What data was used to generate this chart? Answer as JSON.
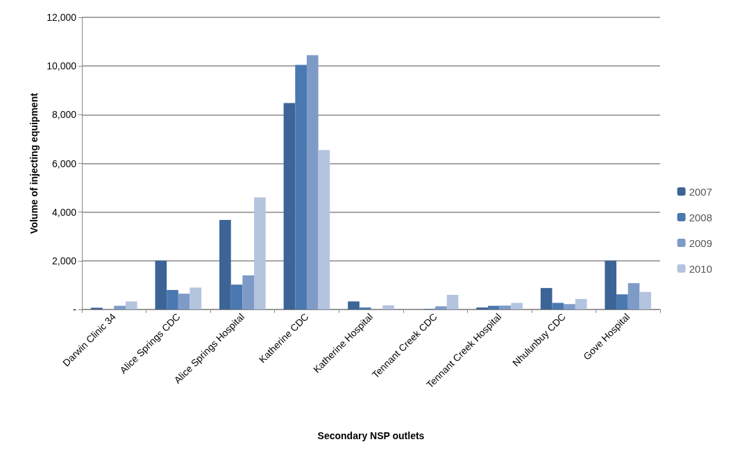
{
  "chart_data": {
    "type": "bar",
    "xlabel": "Secondary NSP outlets",
    "ylabel": "Volume of injecting equipment",
    "categories": [
      "Darwin Clinic 34",
      "Alice Springs CDC",
      "Alice Springs Hospital",
      "Katherine CDC",
      "Katherine Hospital",
      "Tennant Creek CDC",
      "Tennant Creek Hospital",
      "Nhulunbuy CDC",
      "Gove Hospital"
    ],
    "series": [
      {
        "name": "2007",
        "color": "#3c6496",
        "values": [
          70,
          2000,
          3680,
          8480,
          330,
          null,
          80,
          880,
          2000
        ]
      },
      {
        "name": "2008",
        "color": "#4a78b0",
        "values": [
          0,
          800,
          1020,
          10050,
          80,
          20,
          150,
          270,
          620
        ]
      },
      {
        "name": "2009",
        "color": "#7e9bc8",
        "values": [
          150,
          650,
          1400,
          10450,
          0,
          130,
          160,
          220,
          1080
        ]
      },
      {
        "name": "2010",
        "color": "#b4c4df",
        "values": [
          330,
          900,
          4600,
          6550,
          170,
          600,
          270,
          430,
          720
        ]
      }
    ],
    "ylim": [
      0,
      12000
    ],
    "yticks": [
      {
        "value": 0,
        "label": "-"
      },
      {
        "value": 2000,
        "label": "2,000"
      },
      {
        "value": 4000,
        "label": "4,000"
      },
      {
        "value": 6000,
        "label": "6,000"
      },
      {
        "value": 8000,
        "label": "8,000"
      },
      {
        "value": 10000,
        "label": "10,000"
      },
      {
        "value": 12000,
        "label": "12,000"
      }
    ],
    "grid": "y",
    "legend": "right"
  }
}
